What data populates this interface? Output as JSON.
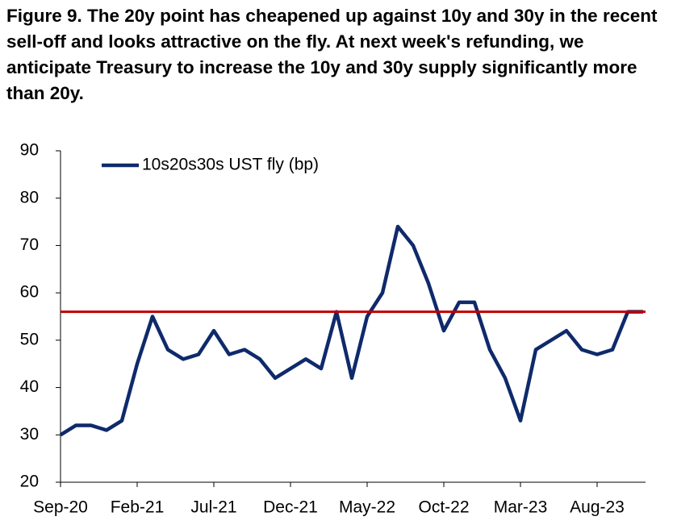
{
  "chart_data": {
    "type": "line",
    "title": "Figure 9.  The 20y point has cheapened up against 10y and 30y in the recent sell-off and looks attractive on the fly. At next week's refunding, we anticipate Treasury to increase the 10y and 30y supply significantly more than 20y.",
    "x": [
      "2020-09",
      "2020-10",
      "2020-11",
      "2020-12",
      "2021-01",
      "2021-02",
      "2021-03",
      "2021-04",
      "2021-05",
      "2021-06",
      "2021-07",
      "2021-08",
      "2021-09",
      "2021-10",
      "2021-11",
      "2021-12",
      "2022-01",
      "2022-02",
      "2022-03",
      "2022-04",
      "2022-05",
      "2022-06",
      "2022-07",
      "2022-08",
      "2022-09",
      "2022-10",
      "2022-11",
      "2022-12",
      "2023-01",
      "2023-02",
      "2023-03",
      "2023-04",
      "2023-05",
      "2023-06",
      "2023-07",
      "2023-08",
      "2023-09",
      "2023-10",
      "2023-11"
    ],
    "series": [
      {
        "name": "10s20s30s UST fly (bp)",
        "color": "#0f2a6b",
        "values": [
          30,
          32,
          32,
          31,
          33,
          45,
          55,
          48,
          46,
          47,
          52,
          47,
          48,
          46,
          42,
          44,
          46,
          44,
          56,
          42,
          55,
          60,
          74,
          70,
          62,
          52,
          58,
          58,
          48,
          42,
          33,
          48,
          50,
          52,
          48,
          47,
          48,
          56,
          56
        ]
      }
    ],
    "hline": {
      "value": 56,
      "color": "#c00000"
    },
    "xlim": [
      "2020-09",
      "2023-11"
    ],
    "xticks": [
      {
        "value": "2020-09",
        "label": "Sep-20"
      },
      {
        "value": "2021-02",
        "label": "Feb-21"
      },
      {
        "value": "2021-07",
        "label": "Jul-21"
      },
      {
        "value": "2021-12",
        "label": "Dec-21"
      },
      {
        "value": "2022-05",
        "label": "May-22"
      },
      {
        "value": "2022-10",
        "label": "Oct-22"
      },
      {
        "value": "2023-03",
        "label": "Mar-23"
      },
      {
        "value": "2023-08",
        "label": "Aug-23"
      }
    ],
    "ylim": [
      20,
      90
    ],
    "yticks": [
      20,
      30,
      40,
      50,
      60,
      70,
      80,
      90
    ],
    "legend": "top-left"
  }
}
